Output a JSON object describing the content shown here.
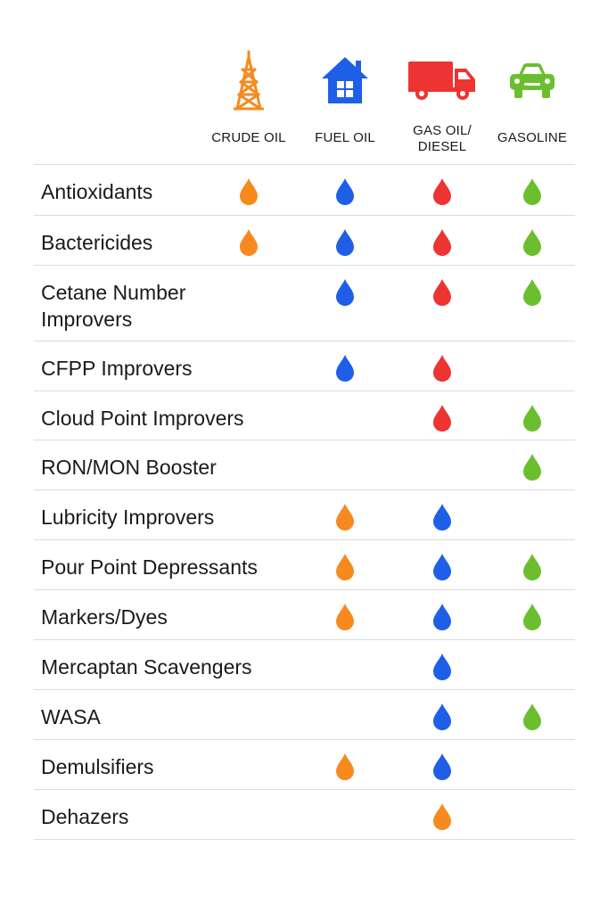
{
  "colors": {
    "crude": "#f68a1f",
    "fuel": "#1f5fe8",
    "diesel": "#ee3333",
    "gasoline": "#6bbf2f"
  },
  "columns": [
    {
      "key": "crude",
      "label_lines": [
        "CRUDE OIL"
      ],
      "icon": "oil-derrick-icon"
    },
    {
      "key": "fuel",
      "label_lines": [
        "FUEL OIL"
      ],
      "icon": "house-icon"
    },
    {
      "key": "diesel",
      "label_lines": [
        "GAS OIL/",
        "DIESEL"
      ],
      "icon": "truck-icon"
    },
    {
      "key": "gasoline",
      "label_lines": [
        "GASOLINE"
      ],
      "icon": "car-icon"
    }
  ],
  "rows": [
    {
      "label_lines": [
        "Antioxidants"
      ],
      "marks": [
        "crude",
        "fuel",
        "diesel",
        "gasoline"
      ]
    },
    {
      "label_lines": [
        "Bactericides"
      ],
      "marks": [
        "crude",
        "fuel",
        "diesel",
        "gasoline"
      ]
    },
    {
      "label_lines": [
        "Cetane Number",
        "Improvers"
      ],
      "marks": [
        null,
        "fuel",
        "diesel",
        "gasoline"
      ]
    },
    {
      "label_lines": [
        "CFPP Improvers"
      ],
      "marks": [
        null,
        "fuel",
        "diesel",
        null
      ]
    },
    {
      "label_lines": [
        "Cloud Point Improvers"
      ],
      "marks": [
        null,
        null,
        "diesel",
        "gasoline"
      ]
    },
    {
      "label_lines": [
        "RON/MON Booster"
      ],
      "marks": [
        null,
        null,
        null,
        "gasoline"
      ]
    },
    {
      "label_lines": [
        "Lubricity Improvers"
      ],
      "marks": [
        null,
        "crude",
        "fuel",
        null
      ]
    },
    {
      "label_lines": [
        "Pour Point Depressants"
      ],
      "marks": [
        null,
        "crude",
        "fuel",
        "gasoline"
      ]
    },
    {
      "label_lines": [
        "Markers/Dyes"
      ],
      "marks": [
        null,
        "crude",
        "fuel",
        "gasoline"
      ]
    },
    {
      "label_lines": [
        "Mercaptan Scavengers"
      ],
      "marks": [
        null,
        null,
        "fuel",
        null
      ]
    },
    {
      "label_lines": [
        "WASA"
      ],
      "marks": [
        null,
        null,
        "fuel",
        "gasoline"
      ]
    },
    {
      "label_lines": [
        "Demulsifiers"
      ],
      "marks": [
        null,
        "crude",
        "fuel",
        null
      ]
    },
    {
      "label_lines": [
        "Dehazers"
      ],
      "marks": [
        null,
        null,
        "crude",
        null
      ]
    }
  ]
}
